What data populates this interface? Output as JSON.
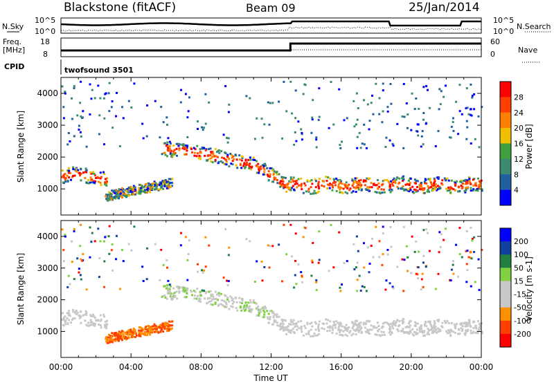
{
  "header": {
    "title": "Blackstone (fitACF)",
    "beam": "Beam 09",
    "date": "25/Jan/2014"
  },
  "nsky_panel": {
    "left_label": "N.Sky",
    "right_label": "N.Search",
    "left_ticks": [
      "10^5",
      "10^0"
    ],
    "right_ticks": [
      "10^5",
      "10^0"
    ]
  },
  "freq_panel": {
    "left_label_1": "Freq.",
    "left_label_2": "[MHz]",
    "left_ticks": [
      "18",
      "8"
    ],
    "right_label": "Nave",
    "right_ticks": [
      "60",
      "0"
    ],
    "cpid_label": "CPID",
    "cpid_value": "twofsound 3501"
  },
  "x_axis": {
    "label": "Time UT",
    "ticks": [
      "00:00",
      "04:00",
      "08:00",
      "12:00",
      "16:00",
      "20:00",
      "00:00"
    ]
  },
  "colors": {
    "power": [
      "#0000ff",
      "#2060a0",
      "#3c8a70",
      "#40a040",
      "#f0c000",
      "#ff8000",
      "#ff4000",
      "#ff0000"
    ],
    "velocity": [
      "#ff0000",
      "#ff4000",
      "#ff9000",
      "#c8c8c8",
      "#c8c8c8",
      "#80d040",
      "#208040",
      "#1040a0",
      "#0000ff"
    ]
  },
  "chart_data": [
    {
      "type": "heatmap",
      "name": "power",
      "ylabel": "Slant Range [km]",
      "xlabel": "",
      "xlim": [
        0,
        24
      ],
      "ylim": [
        180,
        4500
      ],
      "yticks": [
        "1000",
        "2000",
        "3000",
        "4000"
      ],
      "colorbar_label": "Power [dB]",
      "colorbar_ticks": [
        "28",
        "24",
        "20",
        "16",
        "12",
        "8",
        "4"
      ],
      "grid": false
    },
    {
      "type": "heatmap",
      "name": "velocity",
      "ylabel": "Slant Range [km]",
      "xlabel": "Time UT",
      "xlim": [
        0,
        24
      ],
      "ylim": [
        180,
        4500
      ],
      "yticks": [
        "1000",
        "2000",
        "3000",
        "4000"
      ],
      "colorbar_label": "Velocity [m s-1]",
      "colorbar_ticks": [
        "200",
        "100",
        "50",
        "15",
        "-15",
        "-50",
        "-100",
        "-200"
      ],
      "grid": false
    }
  ]
}
